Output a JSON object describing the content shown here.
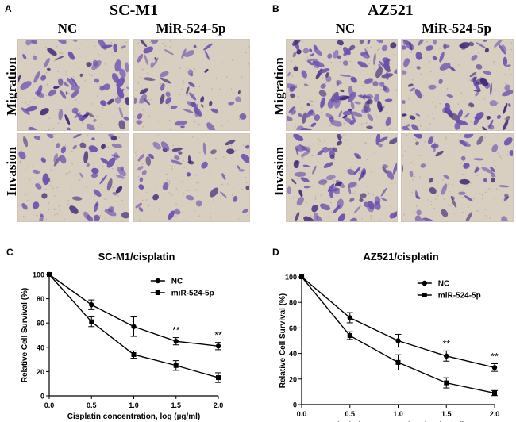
{
  "panelA": {
    "letter": "A",
    "title": "SC-M1",
    "col_nc": "NC",
    "col_mir": "MiR-524-5p",
    "row_migration": "Migration",
    "row_invasion": "Invasion"
  },
  "panelB": {
    "letter": "B",
    "title": "AZ521",
    "col_nc": "NC",
    "col_mir": "MiR-524-5p",
    "row_migration": "Migration",
    "row_invasion": "Invasion"
  },
  "colors": {
    "stain": "#6a4fb0",
    "stain_dark": "#3e2a78",
    "background": "#d9cfc0",
    "line": "#000000"
  },
  "chart_data": [
    {
      "panel": "C",
      "type": "line",
      "title": "SC-M1/cisplatin",
      "xlabel": "Cisplatin concentration, log (µg/ml)",
      "ylabel": "Relative Cell Survival (%)",
      "xlim": [
        0.0,
        2.0
      ],
      "ylim": [
        0,
        100
      ],
      "xticks": [
        "0.0",
        "0.5",
        "1.0",
        "1.5",
        "2.0"
      ],
      "yticks": [
        "0",
        "20",
        "40",
        "60",
        "80",
        "100"
      ],
      "x": [
        0.0,
        0.5,
        1.0,
        1.5,
        2.0
      ],
      "legend_position": "top-right",
      "series": [
        {
          "name": "NC",
          "marker": "circle",
          "values": [
            100,
            75,
            57,
            45,
            41
          ],
          "errors": [
            0,
            4,
            8,
            3,
            3
          ]
        },
        {
          "name": "miR-524-5p",
          "marker": "square",
          "values": [
            100,
            61,
            34,
            25,
            15
          ],
          "errors": [
            0,
            4,
            3,
            4,
            4
          ]
        }
      ],
      "annotations": [
        {
          "x": 1.5,
          "text": "**"
        },
        {
          "x": 2.0,
          "text": "**"
        }
      ]
    },
    {
      "panel": "D",
      "type": "line",
      "title": "AZ521/cisplatin",
      "xlabel": "Cisplatin concentration, log (µg/ml)",
      "ylabel": "Relative Cell Survival (%)",
      "xlim": [
        0.0,
        2.0
      ],
      "ylim": [
        0,
        100
      ],
      "xticks": [
        "0.0",
        "0.5",
        "1.0",
        "1.5",
        "2.0"
      ],
      "yticks": [
        "0",
        "20",
        "40",
        "60",
        "80",
        "100"
      ],
      "x": [
        0.0,
        0.5,
        1.0,
        1.5,
        2.0
      ],
      "legend_position": "top-right",
      "series": [
        {
          "name": "NC",
          "marker": "circle",
          "values": [
            100,
            68,
            50,
            38,
            29
          ],
          "errors": [
            0,
            4,
            5,
            4,
            3
          ]
        },
        {
          "name": "miR-524-5p",
          "marker": "square",
          "values": [
            100,
            54,
            33,
            17,
            9
          ],
          "errors": [
            0,
            3,
            6,
            4,
            2
          ]
        }
      ],
      "annotations": [
        {
          "x": 1.5,
          "text": "**"
        },
        {
          "x": 2.0,
          "text": "**"
        }
      ]
    }
  ]
}
